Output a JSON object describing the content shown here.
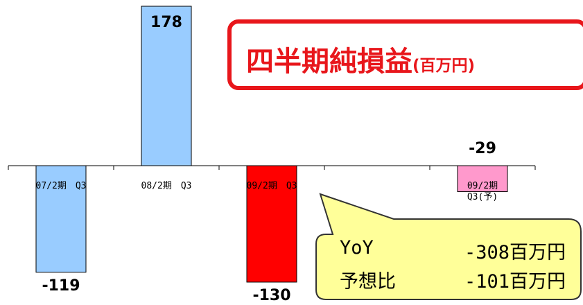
{
  "title": {
    "main": "四半期純損益",
    "unit": "(百万円)"
  },
  "chart_data": {
    "type": "bar",
    "title": "四半期純損益(百万円)",
    "categories": [
      "07/2期　Q3",
      "08/2期　Q3",
      "09/2期　Q3",
      "",
      "09/2期\nQ3(予)"
    ],
    "values": [
      -119,
      178,
      -130,
      null,
      -29
    ],
    "data_labels": [
      "-119",
      "178",
      "-130",
      "",
      "-29"
    ],
    "bar_colors": [
      "#99ccff",
      "#99ccff",
      "#ff0000",
      null,
      "#ff99cc"
    ]
  },
  "callout": {
    "rows": [
      {
        "label": "YoY",
        "value": "-308百万円"
      },
      {
        "label": "予想比",
        "value": "-101百万円"
      }
    ]
  }
}
